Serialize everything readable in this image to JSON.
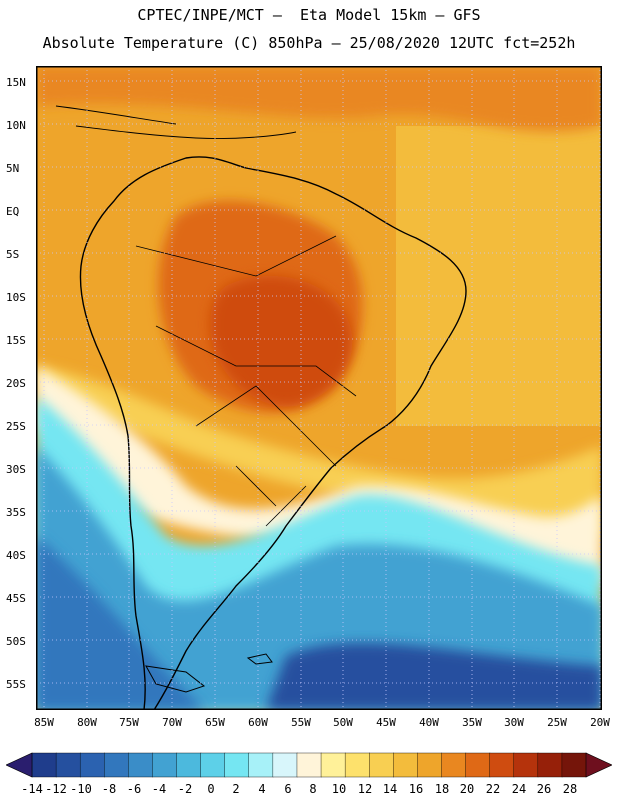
{
  "header": {
    "line1": "CPTEC/INPE/MCT –  Eta Model 15km – GFS",
    "line2": "Absolute Temperature (C) 850hPa – 25/08/2020 12UTC fct=252h"
  },
  "axes": {
    "lat_labels": [
      "15N",
      "10N",
      "5N",
      "EQ",
      "5S",
      "10S",
      "15S",
      "20S",
      "25S",
      "30S",
      "35S",
      "40S",
      "45S",
      "50S",
      "55S"
    ],
    "lon_labels": [
      "85W",
      "80W",
      "75W",
      "70W",
      "65W",
      "60W",
      "55W",
      "50W",
      "45W",
      "40W",
      "35W",
      "30W",
      "25W",
      "20W"
    ]
  },
  "colorbar": {
    "labels": [
      "-14",
      "-12",
      "-10",
      "-8",
      "-6",
      "-4",
      "-2",
      "0",
      "2",
      "4",
      "6",
      "8",
      "10",
      "12",
      "14",
      "16",
      "18",
      "20",
      "22",
      "24",
      "26",
      "28"
    ],
    "colors": [
      "#1f3d8c",
      "#25509f",
      "#2b62b0",
      "#3277bd",
      "#3a8dc8",
      "#42a2d2",
      "#4cb9dd",
      "#5dd0e8",
      "#75e6f2",
      "#a7f1f8",
      "#d8f6fb",
      "#fff4d9",
      "#fff199",
      "#fde16c",
      "#f8cf52",
      "#f3bc3c",
      "#eea52b",
      "#e98720",
      "#df6916",
      "#cf4c10",
      "#b5330c",
      "#962009",
      "#75150a"
    ],
    "low_arrow_color": "#2a1e6e",
    "high_arrow_color": "#6e0f1e"
  },
  "map": {
    "region": "South America",
    "ocean_background": "#f4c032"
  }
}
